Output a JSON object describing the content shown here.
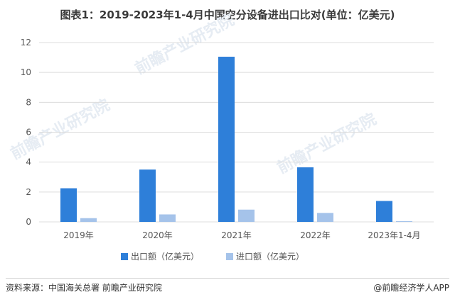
{
  "title": "图表1：2019-2023年1-4月中国空分设备进出口比对(单位：亿美元)",
  "source": "资料来源：中国海关总署 前瞻产业研究院",
  "brand": "@前瞻经济学人APP",
  "watermark": "前瞻产业研究院",
  "colors": {
    "export": "#2e7fd9",
    "import": "#a5c3ea",
    "grid": "#dcdcdc"
  },
  "chart_data": {
    "type": "bar",
    "categories": [
      "2019年",
      "2020年",
      "2021年",
      "2022年",
      "2023年1-4月"
    ],
    "series": [
      {
        "name": "出口额（亿美元）",
        "values": [
          2.25,
          3.5,
          11.05,
          3.65,
          1.4
        ]
      },
      {
        "name": "进口额（亿美元）",
        "values": [
          0.25,
          0.5,
          0.82,
          0.6,
          0.05
        ]
      }
    ],
    "yticks": [
      0,
      2,
      4,
      6,
      8,
      10,
      12
    ],
    "ylim": [
      0,
      12
    ],
    "grid": true,
    "legend": "bottom"
  }
}
